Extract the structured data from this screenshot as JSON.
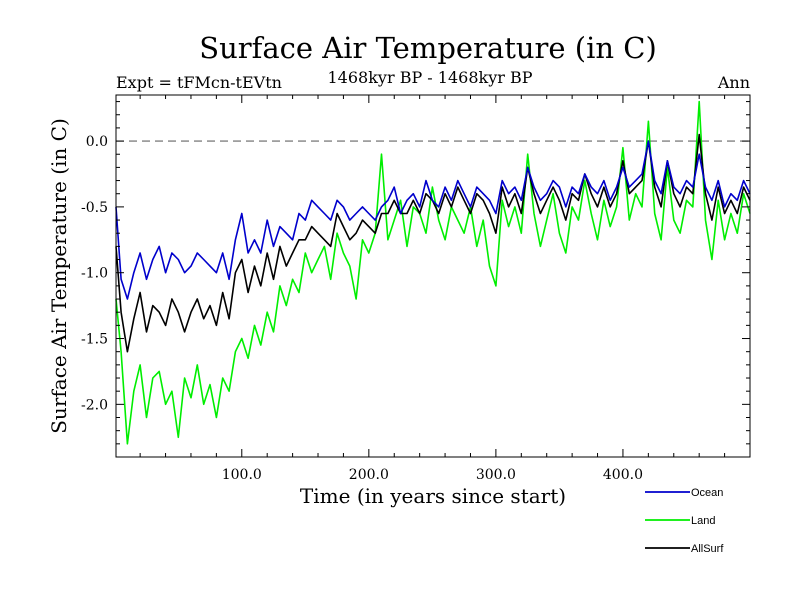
{
  "chart_data": {
    "type": "line",
    "title": "Surface Air Temperature (in C)",
    "subtitle": "1468kyr BP - 1468kyr BP",
    "expt_label": "Expt = tFMcn-tEVtn",
    "period_label": "Ann",
    "xlabel": "Time (in years since start)",
    "ylabel": "Surface Air Temperature (in C)",
    "xlim": [
      1,
      500
    ],
    "ylim": [
      -2.4,
      0.35
    ],
    "x_ticks": [
      100,
      200,
      300,
      400
    ],
    "x_tick_labels": [
      "100.0",
      "200.0",
      "300.0",
      "400.0"
    ],
    "y_ticks": [
      0.0,
      -0.5,
      -1.0,
      -1.5,
      -2.0
    ],
    "y_tick_labels": [
      "0.0",
      "-0.5",
      "-1.0",
      "-1.5",
      "-2.0"
    ],
    "reference_line": 0.0,
    "legend_position": "bottom-right, outside plot",
    "series": [
      {
        "name": "Ocean",
        "color": "#0000cc",
        "x": [
          1,
          5,
          10,
          15,
          20,
          25,
          30,
          35,
          40,
          45,
          50,
          55,
          60,
          65,
          70,
          75,
          80,
          85,
          90,
          95,
          100,
          105,
          110,
          115,
          120,
          125,
          130,
          135,
          140,
          145,
          150,
          155,
          160,
          165,
          170,
          175,
          180,
          185,
          190,
          195,
          200,
          205,
          210,
          215,
          220,
          225,
          230,
          235,
          240,
          245,
          250,
          255,
          260,
          265,
          270,
          275,
          280,
          285,
          290,
          295,
          300,
          305,
          310,
          315,
          320,
          325,
          330,
          335,
          340,
          345,
          350,
          355,
          360,
          365,
          370,
          375,
          380,
          385,
          390,
          395,
          400,
          405,
          410,
          415,
          420,
          425,
          430,
          435,
          440,
          445,
          450,
          455,
          460,
          465,
          470,
          475,
          480,
          485,
          490,
          495,
          500
        ],
        "values": [
          -0.5,
          -1.05,
          -1.2,
          -1.0,
          -0.85,
          -1.05,
          -0.9,
          -0.8,
          -1.0,
          -0.85,
          -0.9,
          -1.0,
          -0.95,
          -0.85,
          -0.9,
          -0.95,
          -1.0,
          -0.85,
          -1.05,
          -0.75,
          -0.55,
          -0.85,
          -0.75,
          -0.85,
          -0.6,
          -0.8,
          -0.65,
          -0.7,
          -0.75,
          -0.55,
          -0.6,
          -0.45,
          -0.5,
          -0.55,
          -0.6,
          -0.45,
          -0.5,
          -0.6,
          -0.55,
          -0.5,
          -0.55,
          -0.6,
          -0.5,
          -0.45,
          -0.35,
          -0.55,
          -0.45,
          -0.4,
          -0.5,
          -0.3,
          -0.45,
          -0.5,
          -0.35,
          -0.45,
          -0.3,
          -0.4,
          -0.5,
          -0.35,
          -0.4,
          -0.45,
          -0.55,
          -0.3,
          -0.4,
          -0.35,
          -0.45,
          -0.2,
          -0.35,
          -0.45,
          -0.4,
          -0.3,
          -0.35,
          -0.5,
          -0.35,
          -0.4,
          -0.25,
          -0.35,
          -0.4,
          -0.3,
          -0.45,
          -0.35,
          -0.2,
          -0.35,
          -0.3,
          -0.25,
          0.0,
          -0.3,
          -0.4,
          -0.15,
          -0.35,
          -0.4,
          -0.3,
          -0.35,
          -0.1,
          -0.35,
          -0.45,
          -0.3,
          -0.5,
          -0.4,
          -0.45,
          -0.3,
          -0.4
        ]
      },
      {
        "name": "Land",
        "color": "#00ee00",
        "x": [
          1,
          5,
          10,
          15,
          20,
          25,
          30,
          35,
          40,
          45,
          50,
          55,
          60,
          65,
          70,
          75,
          80,
          85,
          90,
          95,
          100,
          105,
          110,
          115,
          120,
          125,
          130,
          135,
          140,
          145,
          150,
          155,
          160,
          165,
          170,
          175,
          180,
          185,
          190,
          195,
          200,
          205,
          210,
          215,
          220,
          225,
          230,
          235,
          240,
          245,
          250,
          255,
          260,
          265,
          270,
          275,
          280,
          285,
          290,
          295,
          300,
          305,
          310,
          315,
          320,
          325,
          330,
          335,
          340,
          345,
          350,
          355,
          360,
          365,
          370,
          375,
          380,
          385,
          390,
          395,
          400,
          405,
          410,
          415,
          420,
          425,
          430,
          435,
          440,
          445,
          450,
          455,
          460,
          465,
          470,
          475,
          480,
          485,
          490,
          495,
          500
        ],
        "values": [
          -1.2,
          -1.6,
          -2.3,
          -1.9,
          -1.7,
          -2.1,
          -1.8,
          -1.75,
          -2.0,
          -1.9,
          -2.25,
          -1.8,
          -1.95,
          -1.7,
          -2.0,
          -1.85,
          -2.1,
          -1.8,
          -1.9,
          -1.6,
          -1.5,
          -1.65,
          -1.4,
          -1.55,
          -1.3,
          -1.45,
          -1.1,
          -1.25,
          -1.05,
          -1.15,
          -0.85,
          -1.0,
          -0.9,
          -0.8,
          -1.05,
          -0.7,
          -0.85,
          -0.95,
          -1.2,
          -0.75,
          -0.85,
          -0.7,
          -0.1,
          -0.75,
          -0.6,
          -0.45,
          -0.8,
          -0.5,
          -0.55,
          -0.7,
          -0.35,
          -0.6,
          -0.75,
          -0.5,
          -0.6,
          -0.7,
          -0.5,
          -0.8,
          -0.6,
          -0.95,
          -1.1,
          -0.45,
          -0.65,
          -0.5,
          -0.7,
          -0.1,
          -0.55,
          -0.8,
          -0.6,
          -0.4,
          -0.7,
          -0.85,
          -0.5,
          -0.6,
          -0.3,
          -0.55,
          -0.75,
          -0.45,
          -0.65,
          -0.5,
          -0.05,
          -0.6,
          -0.4,
          -0.5,
          0.15,
          -0.55,
          -0.75,
          -0.2,
          -0.6,
          -0.7,
          -0.45,
          -0.5,
          0.3,
          -0.6,
          -0.9,
          -0.45,
          -0.75,
          -0.55,
          -0.7,
          -0.4,
          -0.55
        ]
      },
      {
        "name": "AllSurf",
        "color": "#000000",
        "x": [
          1,
          5,
          10,
          15,
          20,
          25,
          30,
          35,
          40,
          45,
          50,
          55,
          60,
          65,
          70,
          75,
          80,
          85,
          90,
          95,
          100,
          105,
          110,
          115,
          120,
          125,
          130,
          135,
          140,
          145,
          150,
          155,
          160,
          165,
          170,
          175,
          180,
          185,
          190,
          195,
          200,
          205,
          210,
          215,
          220,
          225,
          230,
          235,
          240,
          245,
          250,
          255,
          260,
          265,
          270,
          275,
          280,
          285,
          290,
          295,
          300,
          305,
          310,
          315,
          320,
          325,
          330,
          335,
          340,
          345,
          350,
          355,
          360,
          365,
          370,
          375,
          380,
          385,
          390,
          395,
          400,
          405,
          410,
          415,
          420,
          425,
          430,
          435,
          440,
          445,
          450,
          455,
          460,
          465,
          470,
          475,
          480,
          485,
          490,
          495,
          500
        ],
        "values": [
          -0.8,
          -1.3,
          -1.6,
          -1.35,
          -1.15,
          -1.45,
          -1.25,
          -1.3,
          -1.4,
          -1.2,
          -1.3,
          -1.45,
          -1.3,
          -1.2,
          -1.35,
          -1.25,
          -1.4,
          -1.15,
          -1.35,
          -1.0,
          -0.9,
          -1.15,
          -0.95,
          -1.1,
          -0.85,
          -1.05,
          -0.8,
          -0.95,
          -0.85,
          -0.75,
          -0.75,
          -0.65,
          -0.7,
          -0.75,
          -0.8,
          -0.55,
          -0.65,
          -0.75,
          -0.7,
          -0.6,
          -0.65,
          -0.7,
          -0.55,
          -0.55,
          -0.45,
          -0.55,
          -0.55,
          -0.45,
          -0.55,
          -0.4,
          -0.45,
          -0.55,
          -0.4,
          -0.5,
          -0.35,
          -0.45,
          -0.55,
          -0.4,
          -0.45,
          -0.55,
          -0.7,
          -0.35,
          -0.5,
          -0.4,
          -0.55,
          -0.2,
          -0.4,
          -0.55,
          -0.45,
          -0.35,
          -0.45,
          -0.6,
          -0.4,
          -0.45,
          -0.25,
          -0.4,
          -0.5,
          -0.35,
          -0.5,
          -0.4,
          -0.15,
          -0.4,
          -0.35,
          -0.3,
          0.0,
          -0.35,
          -0.5,
          -0.15,
          -0.4,
          -0.5,
          -0.35,
          -0.4,
          0.05,
          -0.4,
          -0.6,
          -0.35,
          -0.55,
          -0.45,
          -0.55,
          -0.35,
          -0.45
        ]
      }
    ]
  }
}
